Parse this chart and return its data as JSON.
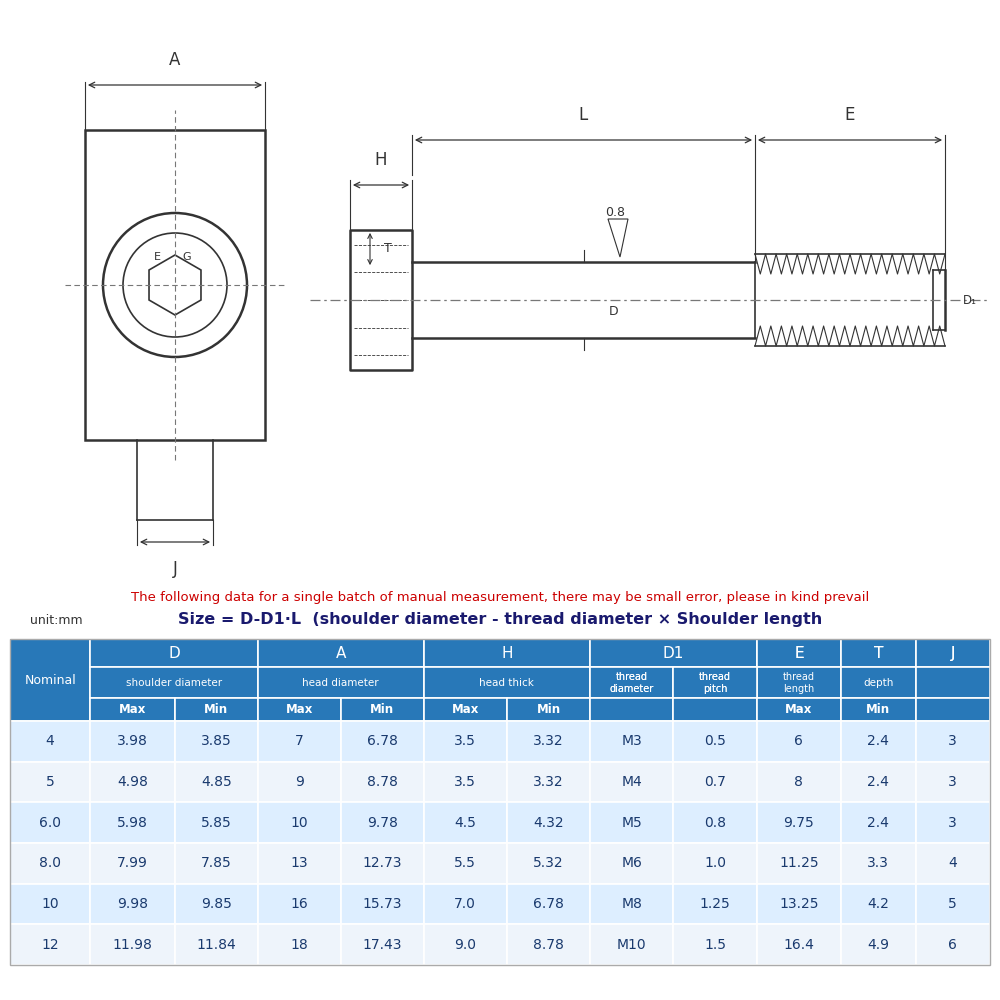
{
  "disclaimer": "The following data for a single batch of manual measurement, there may be small error, please in kind prevail",
  "size_formula": "Size = D-D1·L  (shoulder diameter - thread diameter × Shoulder length",
  "unit": "unit:mm",
  "rows": [
    [
      "4",
      "3.98",
      "3.85",
      "7",
      "6.78",
      "3.5",
      "3.32",
      "M3",
      "0.5",
      "6",
      "2.4",
      "3"
    ],
    [
      "5",
      "4.98",
      "4.85",
      "9",
      "8.78",
      "3.5",
      "3.32",
      "M4",
      "0.7",
      "8",
      "2.4",
      "3"
    ],
    [
      "6.0",
      "5.98",
      "5.85",
      "10",
      "9.78",
      "4.5",
      "4.32",
      "M5",
      "0.8",
      "9.75",
      "2.4",
      "3"
    ],
    [
      "8.0",
      "7.99",
      "7.85",
      "13",
      "12.73",
      "5.5",
      "5.32",
      "M6",
      "1.0",
      "11.25",
      "3.3",
      "4"
    ],
    [
      "10",
      "9.98",
      "9.85",
      "16",
      "15.73",
      "7.0",
      "6.78",
      "M8",
      "1.25",
      "13.25",
      "4.2",
      "5"
    ],
    [
      "12",
      "11.98",
      "11.84",
      "18",
      "17.43",
      "9.0",
      "8.78",
      "M10",
      "1.5",
      "16.4",
      "4.9",
      "6"
    ]
  ],
  "header_bg": "#2878b8",
  "header_text": "#ffffff",
  "row_bg_even": "#ddeeff",
  "row_bg_odd": "#eef4fb",
  "row_text": "#1a3a6e",
  "disclaimer_color": "#cc0000",
  "bg_color": "#ffffff",
  "line_color": "#333333",
  "gray_color": "#777777"
}
